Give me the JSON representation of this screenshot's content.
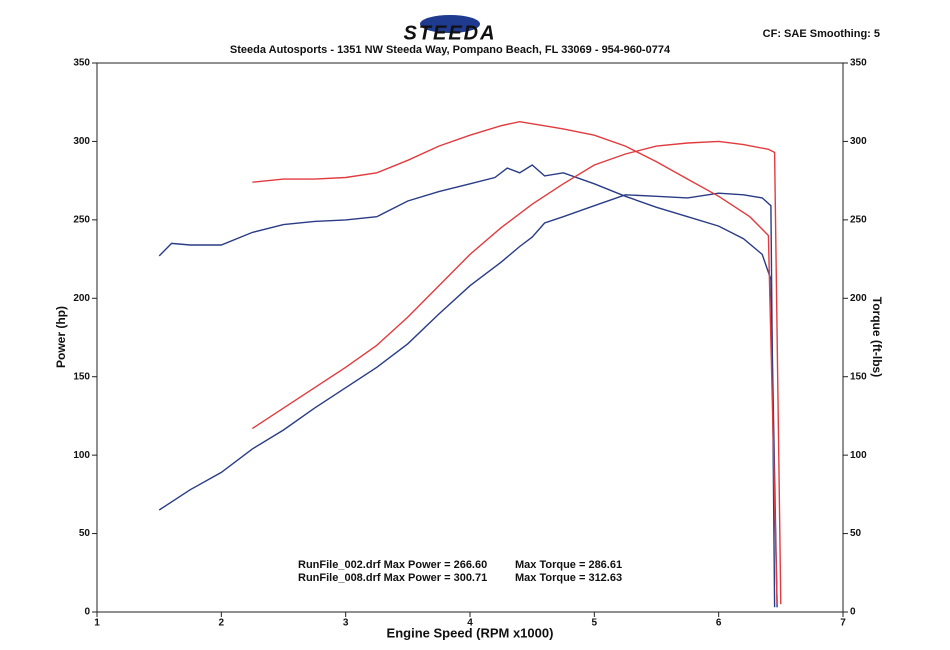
{
  "chart_data": {
    "type": "line",
    "logo": "STEEDA",
    "title": "Steeda Autosports - 1351 NW Steeda Way, Pompano Beach, FL 33069 - 954-960-0774",
    "subtitle": "CF: SAE  Smoothing: 5",
    "x_label": "Engine Speed (RPM x1000)",
    "y_label": "Power (hp)",
    "y2_label": "Torque (ft-lbs)",
    "annotations": [
      "RunFile_002.drf Max Power = 266.60",
      "Max Torque = 286.61",
      "RunFile_008.drf Max Power = 300.71",
      "Max Torque = 312.63"
    ],
    "xlim": [
      1,
      7
    ],
    "xticks": [
      1,
      2,
      3,
      4,
      5,
      6,
      7
    ],
    "ylim": [
      0,
      350
    ],
    "yticks": [
      0,
      50,
      100,
      150,
      200,
      250,
      300,
      350
    ],
    "y2lim": [
      0,
      350
    ],
    "y2ticks": [
      0,
      50,
      100,
      150,
      200,
      250,
      300,
      350
    ],
    "grid": false,
    "series": [
      {
        "color": "#2a3c86",
        "x": [
          1.5,
          1.75,
          2,
          2.25,
          2.5,
          2.75,
          3,
          3.25,
          3.5,
          3.75,
          4,
          4.25,
          4.4,
          4.5,
          4.6,
          4.75,
          5,
          5.25,
          5.5,
          5.75,
          6,
          6.2,
          6.35,
          6.42,
          6.45
        ],
        "values": [
          65,
          78,
          89,
          104,
          116,
          130,
          143,
          156,
          171,
          190,
          208,
          223,
          233,
          239,
          248,
          252,
          259,
          266,
          265,
          264,
          267,
          266,
          264,
          259,
          3
        ]
      },
      {
        "color": "#2a3c86",
        "axis": "y2",
        "x": [
          1.5,
          1.6,
          1.75,
          2,
          2.25,
          2.5,
          2.75,
          3,
          3.25,
          3.5,
          3.75,
          4,
          4.2,
          4.3,
          4.4,
          4.5,
          4.6,
          4.75,
          5,
          5.25,
          5.5,
          5.75,
          6,
          6.2,
          6.35,
          6.42,
          6.47
        ],
        "values": [
          227,
          235,
          234,
          234,
          242,
          247,
          249,
          250,
          252,
          262,
          268,
          273,
          277,
          283,
          280,
          285,
          278,
          280,
          273,
          265,
          258,
          252,
          246,
          238,
          228,
          212,
          3
        ]
      },
      {
        "color": "#e23b3f",
        "x": [
          2.25,
          2.5,
          2.75,
          3,
          3.25,
          3.5,
          3.75,
          4,
          4.25,
          4.5,
          4.75,
          5,
          5.25,
          5.5,
          5.75,
          6,
          6.2,
          6.4,
          6.45,
          6.5
        ],
        "values": [
          117,
          130,
          143,
          156,
          170,
          188,
          208,
          228,
          245,
          260,
          273,
          285,
          292,
          297,
          299,
          300,
          298,
          295,
          293,
          5
        ]
      },
      {
        "color": "#e23b3f",
        "axis": "y2",
        "x": [
          2.25,
          2.5,
          2.75,
          3,
          3.25,
          3.5,
          3.75,
          4,
          4.25,
          4.4,
          4.75,
          5,
          5.25,
          5.5,
          5.75,
          6,
          6.25,
          6.4,
          6.47
        ],
        "values": [
          274,
          276,
          276,
          277,
          280,
          288,
          297,
          304,
          310,
          312.6,
          308,
          304,
          297,
          287,
          276,
          265,
          252,
          240,
          5
        ]
      }
    ]
  }
}
